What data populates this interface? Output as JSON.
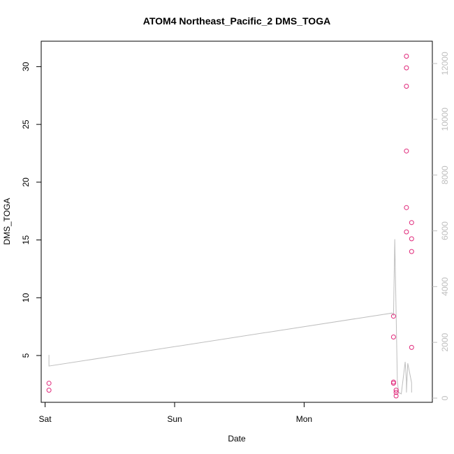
{
  "chart_data": {
    "type": "scatter",
    "title": "ATOM4 Northeast_Pacific_2 DMS_TOGA",
    "xlabel": "Date",
    "ylabel": "DMS_TOGA",
    "x_ticks": [
      "Sat",
      "Sun",
      "Mon"
    ],
    "x_domain_days": [
      -0.03,
      2.99
    ],
    "ylim": [
      0.95,
      32.2
    ],
    "y_ticks": [
      "5",
      "10",
      "15",
      "20",
      "25",
      "30"
    ],
    "y_right_lim": [
      -150,
      12800
    ],
    "y_right_ticks": [
      "0",
      "2000",
      "4000",
      "6000",
      "8000",
      "10000",
      "12000"
    ],
    "grid": false,
    "legend": "none",
    "series": [
      {
        "type": "scatter",
        "color": "#e0287a",
        "points": [
          {
            "x": 0.03,
            "y": 2.6
          },
          {
            "x": 0.03,
            "y": 2.0
          },
          {
            "x": 2.69,
            "y": 8.4
          },
          {
            "x": 2.69,
            "y": 6.6
          },
          {
            "x": 2.69,
            "y": 2.7
          },
          {
            "x": 2.69,
            "y": 2.6
          },
          {
            "x": 2.71,
            "y": 2.0
          },
          {
            "x": 2.71,
            "y": 1.8
          },
          {
            "x": 2.71,
            "y": 1.5
          },
          {
            "x": 2.79,
            "y": 30.9
          },
          {
            "x": 2.79,
            "y": 29.9
          },
          {
            "x": 2.79,
            "y": 28.3
          },
          {
            "x": 2.79,
            "y": 22.7
          },
          {
            "x": 2.79,
            "y": 17.8
          },
          {
            "x": 2.79,
            "y": 15.7
          },
          {
            "x": 2.83,
            "y": 16.5
          },
          {
            "x": 2.83,
            "y": 15.1
          },
          {
            "x": 2.83,
            "y": 14.0
          },
          {
            "x": 2.83,
            "y": 5.7
          }
        ]
      },
      {
        "type": "line",
        "axis": "right",
        "color": "#bebebe",
        "points": [
          {
            "x": 0.03,
            "y": 1550
          },
          {
            "x": 0.03,
            "y": 1150
          },
          {
            "x": 2.68,
            "y": 3050
          },
          {
            "x": 2.69,
            "y": 2950
          },
          {
            "x": 2.7,
            "y": 5700
          },
          {
            "x": 2.71,
            "y": 3100
          },
          {
            "x": 2.72,
            "y": 600
          },
          {
            "x": 2.73,
            "y": 200
          },
          {
            "x": 2.75,
            "y": 150
          },
          {
            "x": 2.77,
            "y": 900
          },
          {
            "x": 2.78,
            "y": 1300
          },
          {
            "x": 2.79,
            "y": 600
          },
          {
            "x": 2.79,
            "y": 200
          },
          {
            "x": 2.8,
            "y": 1250
          },
          {
            "x": 2.83,
            "y": 550
          },
          {
            "x": 2.83,
            "y": 200
          }
        ]
      }
    ]
  }
}
